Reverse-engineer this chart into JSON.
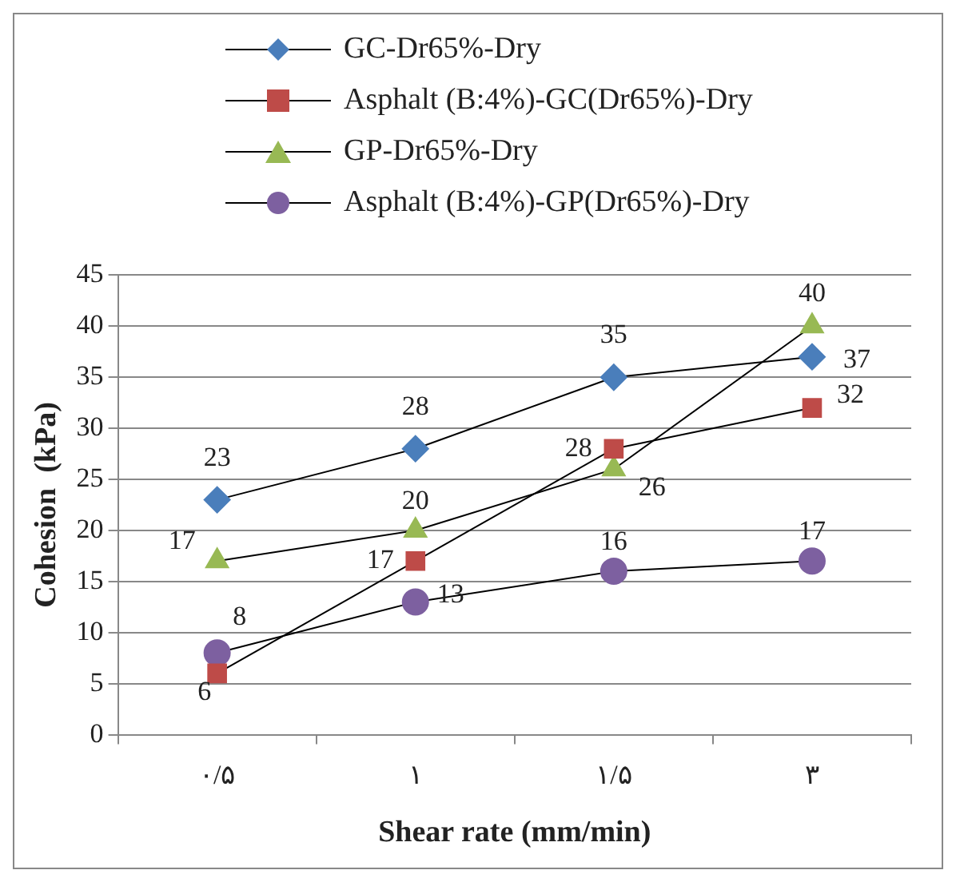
{
  "chart_data": {
    "type": "line",
    "xlabel": "Shear rate (mm/min)",
    "ylabel": "Cohesion  (kPa)",
    "categories": [
      "۰/۵",
      "۱",
      "۱/۵",
      "۳"
    ],
    "series": [
      {
        "name": "GC-Dr65%-Dry",
        "color": "#4a7ebb",
        "marker": "diamond",
        "values": [
          23,
          28,
          35,
          37
        ]
      },
      {
        "name": "Asphalt (B:4%)-GC(Dr65%)-Dry",
        "color": "#be4b48",
        "marker": "square",
        "values": [
          6,
          17,
          28,
          32
        ]
      },
      {
        "name": "GP-Dr65%-Dry",
        "color": "#98b954",
        "marker": "triangle",
        "values": [
          17,
          20,
          26,
          40
        ]
      },
      {
        "name": "Asphalt (B:4%)-GP(Dr65%)-Dry",
        "color": "#7d60a0",
        "marker": "circle",
        "values": [
          8,
          13,
          16,
          17
        ]
      }
    ],
    "ylim": [
      0,
      45
    ],
    "yticks": [
      0,
      5,
      10,
      15,
      20,
      25,
      30,
      35,
      40,
      45
    ],
    "grid": "y",
    "legend": "top",
    "data_labels": true,
    "line_style": "solid"
  }
}
